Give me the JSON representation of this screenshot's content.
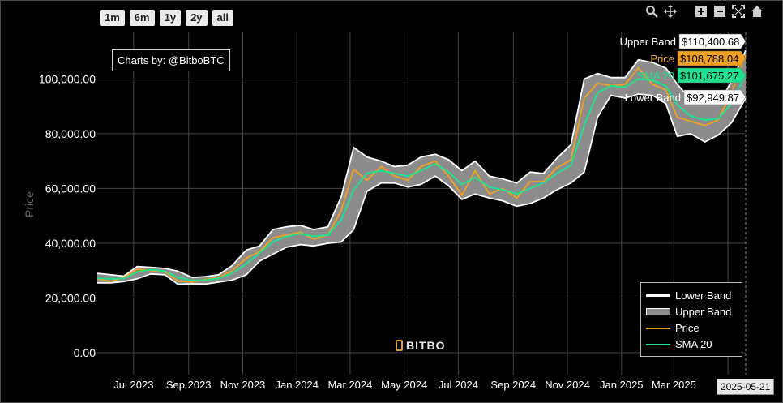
{
  "range_buttons": [
    "1m",
    "6m",
    "1y",
    "2y",
    "all"
  ],
  "toolbar": {
    "zoom_icon": "zoom-icon",
    "pan_icon": "pan-icon",
    "zoom_in_icon": "zoom-in-icon",
    "zoom_out_icon": "zoom-out-icon",
    "autoscale_icon": "autoscale-icon",
    "reset_icon": "home-icon"
  },
  "credit": "Charts by: @BitboBTC",
  "watermark": "BITBO",
  "hover_date": "2025-05-21",
  "hover_labels": [
    {
      "name": "Upper Band",
      "value": "$110,400.68",
      "color": "#ffffff"
    },
    {
      "name": "Price",
      "value": "$108,788.04",
      "color": "#f0a020"
    },
    {
      "name": "SMA 20",
      "value": "$101,675.27",
      "color": "#20e090"
    },
    {
      "name": "Lower Band",
      "value": "$92,949.87",
      "color": "#ffffff"
    }
  ],
  "colors": {
    "price": "#f0a020",
    "sma": "#20e090",
    "band_fill": "#8c8c8c",
    "band_line": "#ffffff",
    "grid": "#444444"
  },
  "chart_data": {
    "type": "line",
    "title": "",
    "xlabel": "",
    "ylabel": "Price",
    "ylim": [
      -8000,
      117000
    ],
    "yticks": [
      0,
      20000,
      40000,
      60000,
      80000,
      100000
    ],
    "ytick_labels": [
      "0.00",
      "20,000.00",
      "40,000.00",
      "60,000.00",
      "80,000.00",
      "100,000.00"
    ],
    "xticks": [
      "2023-07-01",
      "2023-09-01",
      "2023-11-01",
      "2024-01-01",
      "2024-03-01",
      "2024-05-01",
      "2024-07-01",
      "2024-09-01",
      "2024-11-01",
      "2025-01-01",
      "2025-03-01",
      "2025-05-01"
    ],
    "xtick_labels": [
      "Jul 2023",
      "Sep 2023",
      "Nov 2023",
      "Jan 2024",
      "Mar 2024",
      "May 2024",
      "Jul 2024",
      "Sep 2024",
      "Nov 2024",
      "Jan 2025",
      "Mar 2025",
      "Ma"
    ],
    "xrange": [
      "2023-05-21",
      "2025-05-21"
    ],
    "legend": "bottom-right",
    "grid": true,
    "dates": [
      "2023-05-21",
      "2023-06-05",
      "2023-06-20",
      "2023-07-05",
      "2023-07-20",
      "2023-08-05",
      "2023-08-20",
      "2023-09-05",
      "2023-09-20",
      "2023-10-05",
      "2023-10-20",
      "2023-11-05",
      "2023-11-20",
      "2023-12-05",
      "2023-12-20",
      "2024-01-05",
      "2024-01-20",
      "2024-02-05",
      "2024-02-20",
      "2024-03-05",
      "2024-03-20",
      "2024-04-05",
      "2024-04-20",
      "2024-05-05",
      "2024-05-20",
      "2024-06-05",
      "2024-06-20",
      "2024-07-05",
      "2024-07-20",
      "2024-08-05",
      "2024-08-20",
      "2024-09-05",
      "2024-09-20",
      "2024-10-05",
      "2024-10-20",
      "2024-11-05",
      "2024-11-20",
      "2024-12-05",
      "2024-12-20",
      "2025-01-05",
      "2025-01-20",
      "2025-02-05",
      "2025-02-20",
      "2025-03-05",
      "2025-03-20",
      "2025-04-05",
      "2025-04-20",
      "2025-05-05",
      "2025-05-21"
    ],
    "series": [
      {
        "name": "Price",
        "values": [
          27000,
          26000,
          27500,
          30500,
          30000,
          29500,
          26200,
          25800,
          26800,
          27500,
          30000,
          34500,
          37000,
          42000,
          43000,
          44000,
          41500,
          43000,
          52000,
          67000,
          63000,
          68000,
          64500,
          63000,
          68000,
          70000,
          64500,
          57500,
          66500,
          58000,
          60000,
          56500,
          62500,
          62500,
          67500,
          70500,
          93000,
          98500,
          97500,
          98000,
          104000,
          98000,
          96000,
          86000,
          84500,
          83000,
          85000,
          95000,
          108788
        ]
      },
      {
        "name": "SMA 20",
        "values": [
          27200,
          27000,
          27100,
          29500,
          30300,
          29800,
          27500,
          26400,
          26500,
          27200,
          29000,
          32500,
          36500,
          40500,
          42500,
          43500,
          42500,
          43000,
          48500,
          59500,
          65500,
          66500,
          65500,
          64500,
          66500,
          69000,
          66000,
          61500,
          64000,
          60500,
          59500,
          58000,
          60000,
          62000,
          65500,
          68500,
          83000,
          95000,
          97500,
          97000,
          100000,
          99500,
          97500,
          90500,
          86500,
          85000,
          85500,
          91000,
          101675
        ]
      },
      {
        "name": "Upper Band",
        "values": [
          29000,
          28500,
          28000,
          31500,
          31200,
          30800,
          29800,
          27500,
          27800,
          28500,
          31800,
          37500,
          39000,
          45000,
          46000,
          46500,
          45000,
          46000,
          57000,
          75000,
          71500,
          70000,
          68000,
          68500,
          71500,
          72500,
          70500,
          66500,
          70000,
          64500,
          63500,
          62000,
          66000,
          65500,
          71000,
          76000,
          100000,
          102000,
          100500,
          100500,
          107000,
          106000,
          104000,
          98000,
          92500,
          92500,
          91000,
          99000,
          110400
        ]
      },
      {
        "name": "Lower Band",
        "values": [
          25500,
          25500,
          26000,
          27000,
          28800,
          28500,
          25000,
          25200,
          25100,
          25800,
          26500,
          28500,
          33500,
          36000,
          38500,
          39500,
          39000,
          40000,
          40500,
          45000,
          59000,
          62000,
          62000,
          60500,
          61500,
          64500,
          61000,
          56000,
          58000,
          56500,
          55500,
          53500,
          54500,
          56500,
          59500,
          62000,
          66000,
          86000,
          94000,
          93000,
          94500,
          94000,
          91000,
          79000,
          80000,
          77000,
          79500,
          84000,
          92949
        ]
      }
    ]
  },
  "legend": [
    {
      "name": "Lower Band"
    },
    {
      "name": "Upper Band"
    },
    {
      "name": "Price"
    },
    {
      "name": "SMA 20"
    }
  ]
}
